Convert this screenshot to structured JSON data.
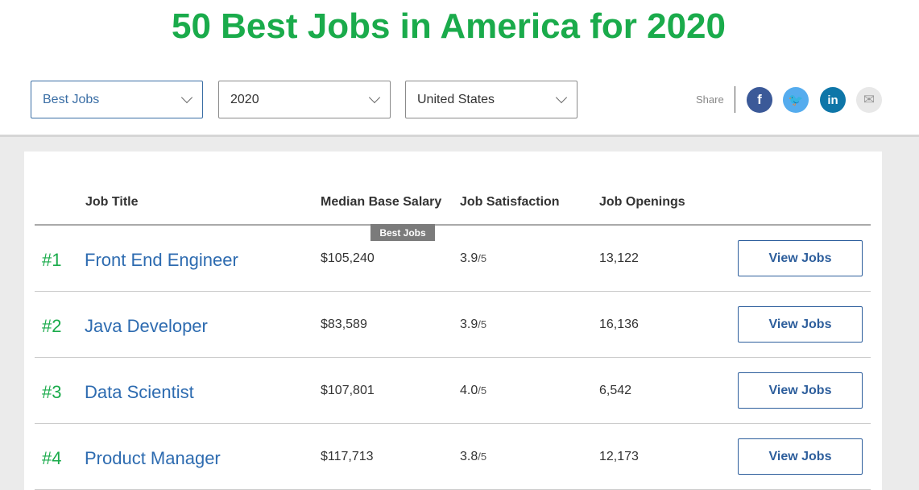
{
  "title": "50 Best Jobs in America for 2020",
  "filters": [
    {
      "value": "Best Jobs"
    },
    {
      "value": "2020"
    },
    {
      "value": "United States"
    }
  ],
  "share": {
    "label": "Share",
    "icons": [
      "facebook-icon",
      "twitter-icon",
      "linkedin-icon",
      "email-icon"
    ],
    "colors": {
      "facebook": "#3b5998",
      "twitter": "#55acee",
      "linkedin": "#0e76a8",
      "email": "#e8e8e8"
    }
  },
  "columns": [
    "Job Title",
    "Median Base Salary",
    "Job Satisfaction",
    "Job Openings"
  ],
  "tooltip": "Best Jobs",
  "rows": [
    {
      "rank": "#1",
      "title": "Front End Engineer",
      "salary": "$105,240",
      "satisfaction": "3.9",
      "scale": "/5",
      "openings": "13,122",
      "button": "View Jobs"
    },
    {
      "rank": "#2",
      "title": "Java Developer",
      "salary": "$83,589",
      "satisfaction": "3.9",
      "scale": "/5",
      "openings": "16,136",
      "button": "View Jobs"
    },
    {
      "rank": "#3",
      "title": "Data Scientist",
      "salary": "$107,801",
      "satisfaction": "4.0",
      "scale": "/5",
      "openings": "6,542",
      "button": "View Jobs"
    },
    {
      "rank": "#4",
      "title": "Product Manager",
      "salary": "$117,713",
      "satisfaction": "3.8",
      "scale": "/5",
      "openings": "12,173",
      "button": "View Jobs"
    }
  ]
}
